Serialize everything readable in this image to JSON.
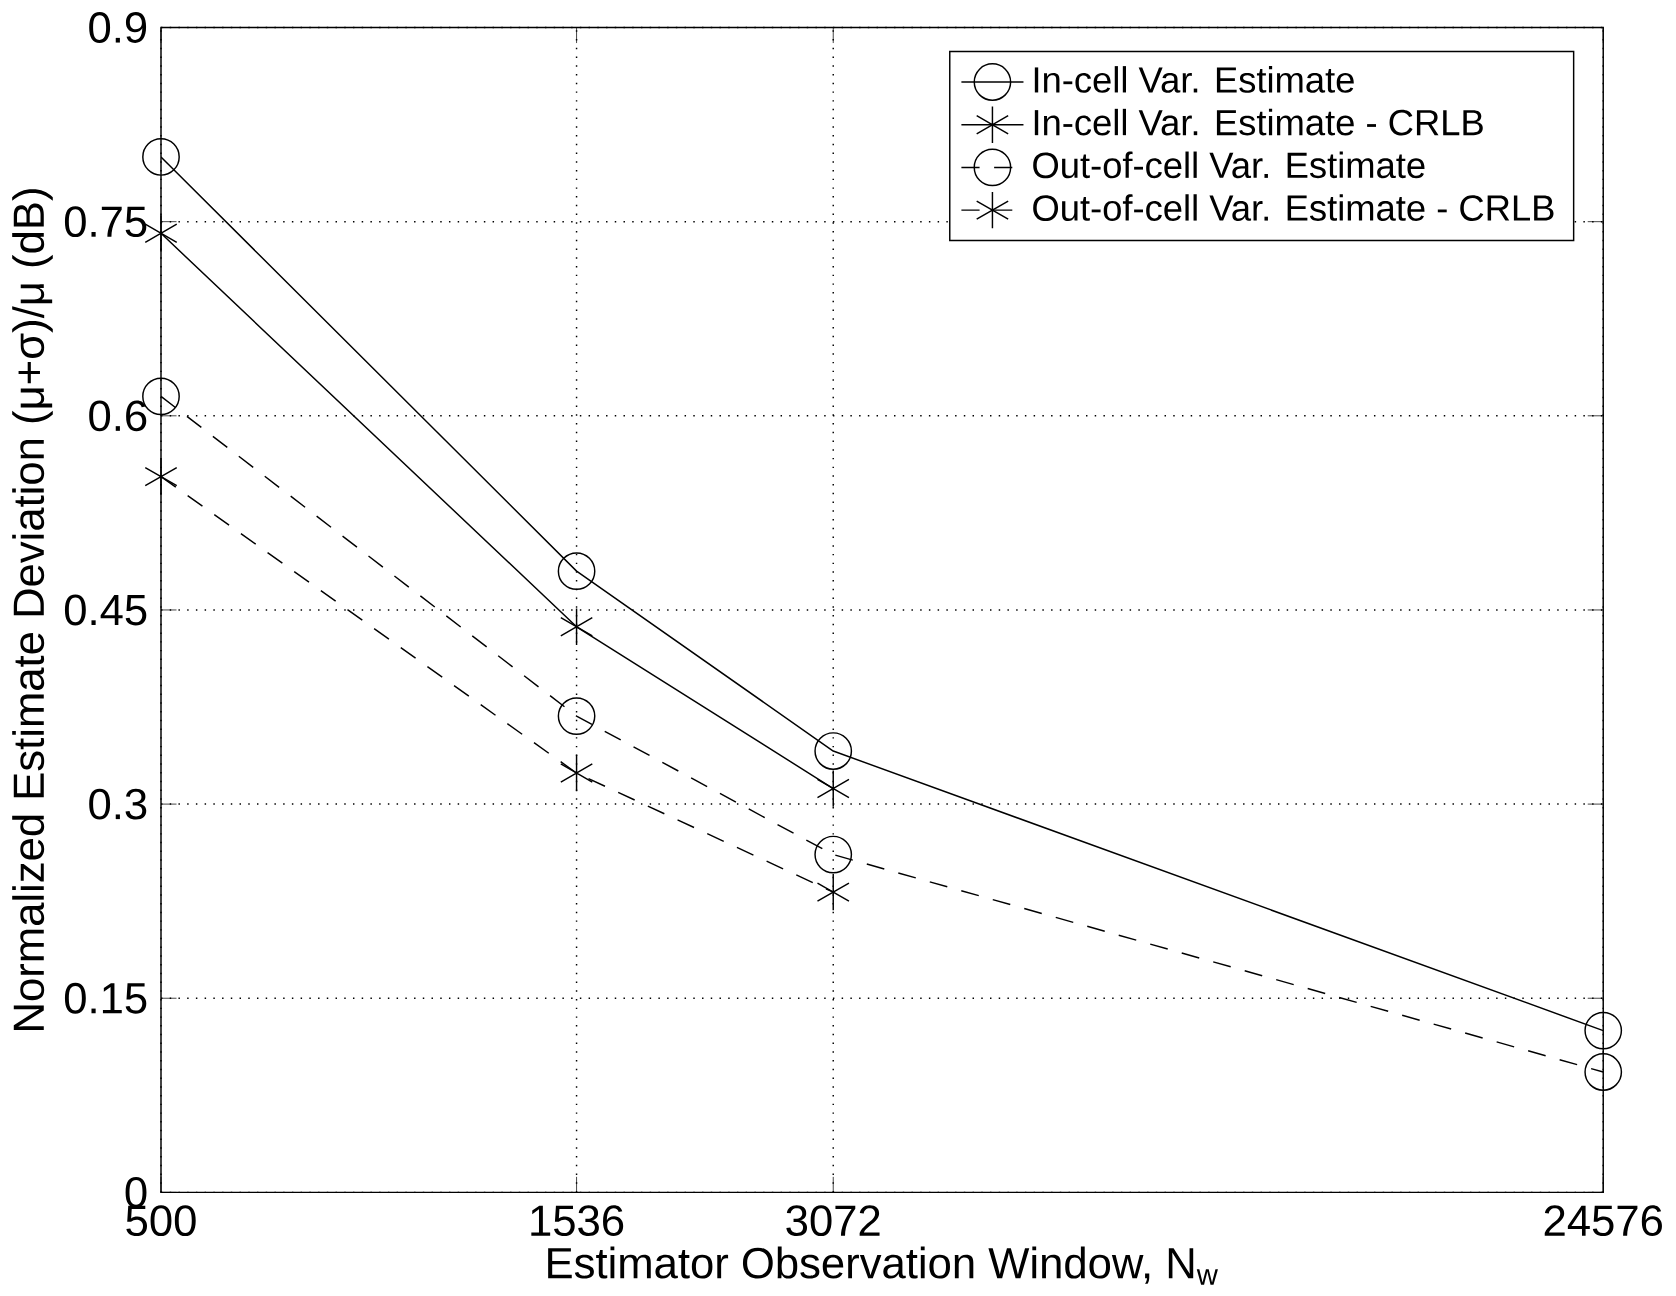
{
  "chart_data": {
    "type": "line",
    "xlabel": "Estimator Observation Window, N$_{w}$",
    "ylabel": "Normalized Estimate Deviation (μ+σ)/μ (dB)",
    "log": "x",
    "xlim": [
      500,
      24576
    ],
    "xticks": [
      500,
      1536,
      3072,
      24576
    ],
    "ylim": [
      0,
      0.9
    ],
    "yticks": [
      0,
      0.15,
      0.3,
      0.45,
      0.6,
      0.75,
      0.9
    ],
    "grid": true,
    "legend": "top right",
    "series": [
      {
        "name": "In-cell Var. Estimate",
        "color": "#000000",
        "marker": "circle",
        "line_style": "solid",
        "x": [
          500,
          1536,
          3072,
          24576
        ],
        "values": [
          0.8,
          0.48,
          0.341,
          0.125
        ]
      },
      {
        "name": "In-cell Var. Estimate - CRLB",
        "color": "#000000",
        "marker": "cross",
        "line_style": "solid",
        "x": [
          500,
          1536,
          3072
        ],
        "values": [
          0.741,
          0.437,
          0.312
        ]
      },
      {
        "name": "Out-of-cell Var. Estimate",
        "color": "#000000",
        "marker": "circle",
        "line_style": "dashed",
        "x": [
          500,
          1536,
          3072,
          24576
        ],
        "values": [
          0.615,
          0.368,
          0.261,
          0.093
        ]
      },
      {
        "name": "Out-of-cell Var. Estimate - CRLB",
        "color": "#000000",
        "marker": "cross",
        "line_style": "dashed",
        "x": [
          500,
          1536,
          3072
        ],
        "values": [
          0.553,
          0.324,
          0.232
        ]
      }
    ]
  }
}
